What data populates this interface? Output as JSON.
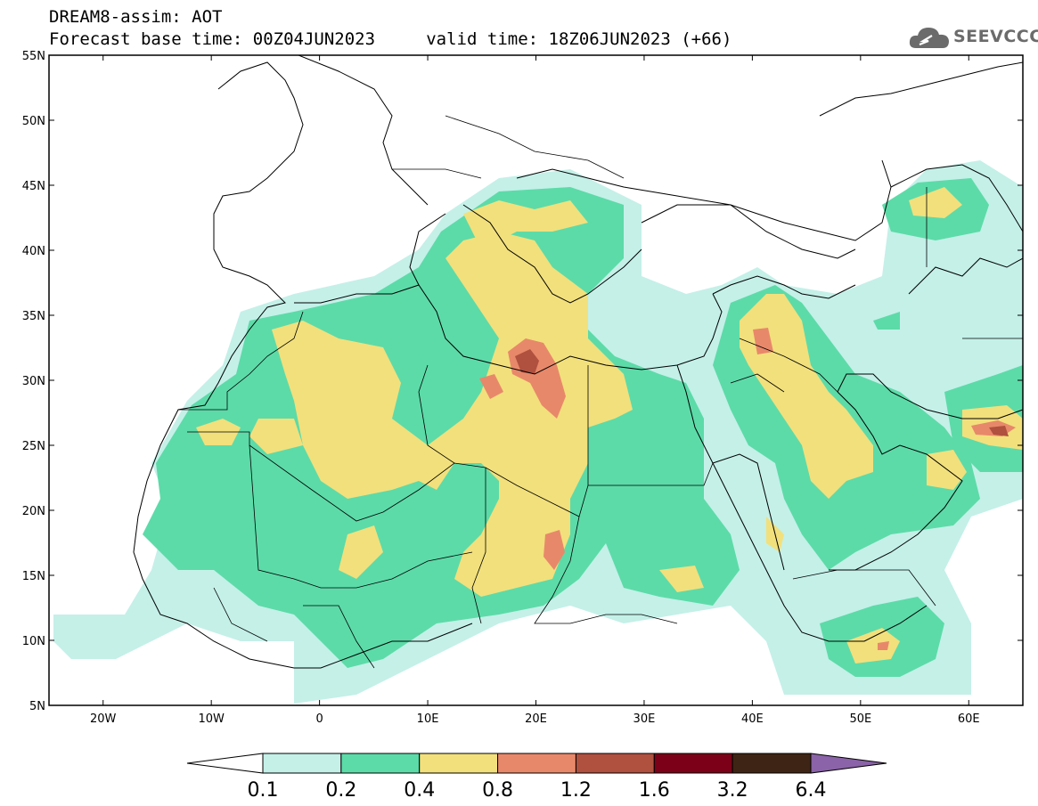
{
  "header": {
    "model_line": "DREAM8-assim: AOT",
    "base_time_line": "Forecast base time: 00Z04JUN2023     valid time: 18Z06JUN2023 (+66)"
  },
  "logo": {
    "text": "SEEVCCC",
    "icon": "cloud-icon"
  },
  "map": {
    "lon_range": [
      -25,
      65
    ],
    "lat_range": [
      5,
      55
    ],
    "lat_ticks": [
      "55N",
      "50N",
      "45N",
      "40N",
      "35N",
      "30N",
      "25N",
      "20N",
      "15N",
      "10N",
      "5N"
    ],
    "lat_values": [
      55,
      50,
      45,
      40,
      35,
      30,
      25,
      20,
      15,
      10,
      5
    ],
    "lon_ticks": [
      "20W",
      "10W",
      "0",
      "10E",
      "20E",
      "30E",
      "40E",
      "50E",
      "60E"
    ],
    "lon_values": [
      -20,
      -10,
      0,
      10,
      20,
      30,
      40,
      50,
      60
    ]
  },
  "colorbar": {
    "levels": [
      "0.1",
      "0.2",
      "0.4",
      "0.8",
      "1.2",
      "1.6",
      "3.2",
      "6.4"
    ],
    "colors": [
      "#ffffff",
      "#c4f0e8",
      "#5cdba8",
      "#f2e07c",
      "#e8886a",
      "#b0503f",
      "#7b0018",
      "#3e2414",
      "#8a63a8"
    ]
  }
}
